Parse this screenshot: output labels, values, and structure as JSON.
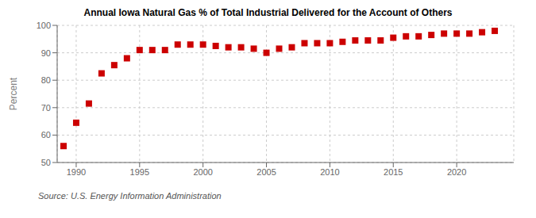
{
  "chart_data": {
    "type": "scatter",
    "title": "Annual Iowa Natural Gas % of Total Industrial Delivered for the Account of Others",
    "ylabel": "Percent",
    "annotation": "Source: U.S. Energy Information Administration",
    "x": [
      1989,
      1990,
      1991,
      1992,
      1993,
      1994,
      1995,
      1996,
      1997,
      1998,
      1999,
      2000,
      2001,
      2002,
      2003,
      2004,
      2005,
      2006,
      2007,
      2008,
      2009,
      2010,
      2011,
      2012,
      2013,
      2014,
      2015,
      2016,
      2017,
      2018,
      2019,
      2020,
      2021,
      2022,
      2023
    ],
    "values": [
      56.0,
      64.5,
      71.5,
      82.5,
      85.5,
      88.0,
      91.0,
      91.0,
      91.0,
      93.0,
      93.0,
      93.0,
      92.5,
      92.0,
      92.0,
      91.5,
      90.0,
      91.5,
      92.0,
      93.5,
      93.5,
      93.5,
      94.0,
      94.5,
      94.5,
      94.5,
      95.5,
      96.0,
      96.0,
      96.5,
      97.0,
      97.0,
      97.0,
      97.5,
      98.0
    ],
    "color": "#cc0000",
    "marker": "square",
    "xlim": [
      1988.5,
      2024.5
    ],
    "xticks": [
      1990,
      1995,
      2000,
      2005,
      2010,
      2015,
      2020
    ],
    "ylim": [
      50,
      100
    ],
    "yticks": [
      50,
      60,
      70,
      80,
      90,
      100
    ],
    "grid": true
  }
}
